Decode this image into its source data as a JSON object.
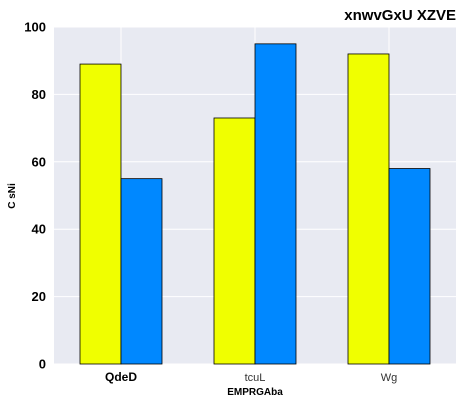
{
  "chart_data": {
    "type": "bar",
    "title": "xnwvGxU XZVE",
    "xlabel": "EMPRGAba",
    "ylabel": "C sNi",
    "categories": [
      "QdeD",
      "tcuL",
      "Wg"
    ],
    "series": [
      {
        "values": [
          89,
          73,
          92
        ],
        "color": "#f0ff00"
      },
      {
        "values": [
          55,
          95,
          58
        ],
        "color": "#0088ff"
      }
    ],
    "ylim": [
      0,
      100
    ],
    "yticks": [
      0,
      20,
      40,
      60,
      80,
      100
    ],
    "grid": true,
    "legend": "none",
    "background": "#e8eaf2"
  }
}
